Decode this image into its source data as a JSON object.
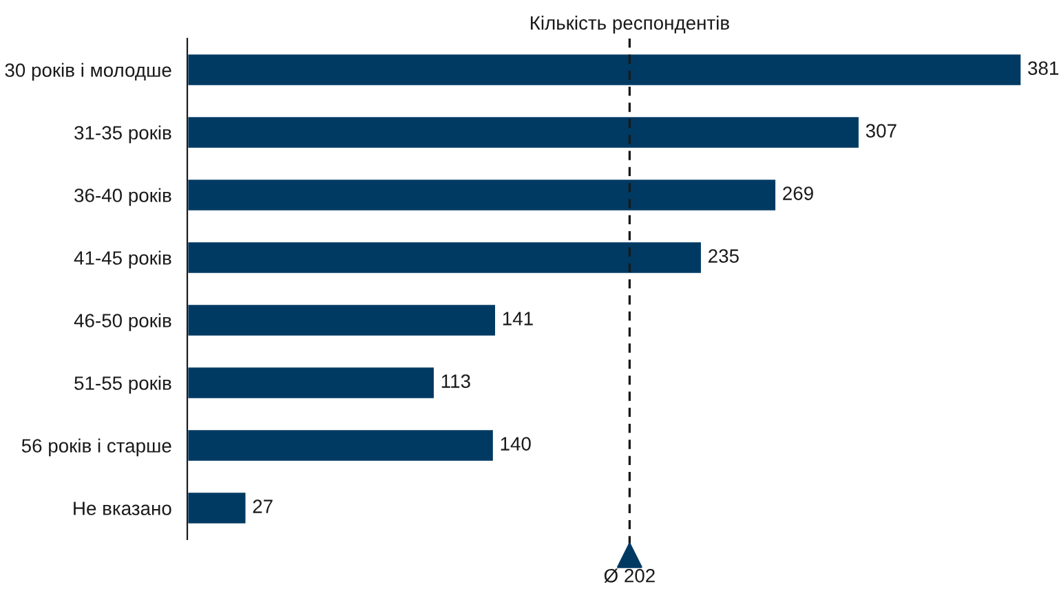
{
  "chart_data": {
    "type": "bar",
    "orientation": "horizontal",
    "title": "Кількість респондентів",
    "categories": [
      "30 років і молодше",
      "31-35 років",
      "36-40 років",
      "41-45 років",
      "46-50 років",
      "51-55 років",
      "56 років і старше",
      "Не вказано"
    ],
    "values": [
      381,
      307,
      269,
      235,
      141,
      113,
      140,
      27
    ],
    "color": "#003a63",
    "data_labels": true,
    "grid": false,
    "legend": false,
    "ref_lines": [
      {
        "axis": "x",
        "value": 202,
        "label": "Ø 202",
        "line_style": "dashed",
        "color": "#1a1a1a"
      }
    ]
  }
}
